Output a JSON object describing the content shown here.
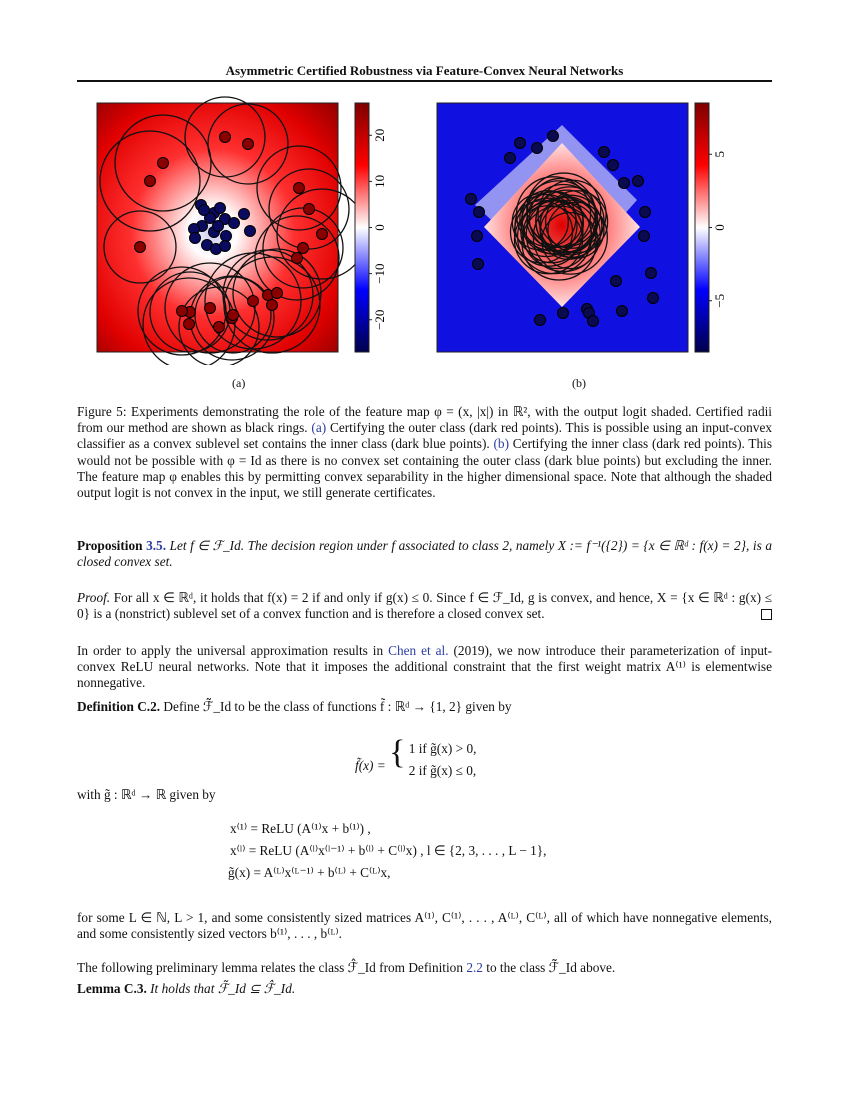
{
  "header": {
    "title": "Asymmetric Certified Robustness via Feature-Convex Neural Networks"
  },
  "figure": {
    "panels": [
      {
        "label": "(a)",
        "colorbar_ticks": [
          "20",
          "10",
          "0",
          "−10",
          "−20"
        ],
        "colorbar_range": [
          -27,
          27
        ],
        "colors": {
          "low": "#00004c",
          "mid": "#ffffff",
          "high": "#7f0000"
        }
      },
      {
        "label": "(b)",
        "colorbar_ticks": [
          "5",
          "0",
          "−5"
        ],
        "colorbar_range": [
          -8.5,
          8.5
        ],
        "colors": {
          "low": "#00004c",
          "mid": "#ffffff",
          "high": "#7f0000"
        }
      }
    ],
    "caption_prefix": "Figure 5: ",
    "caption_1": "Experiments demonstrating the role of the feature map φ = (x, |x|) in ℝ², with the output logit shaded. Certified radii from our method are shown as black rings. ",
    "caption_a": "(a)",
    "caption_2": " Certifying the outer class (dark red points). This is possible using an input-convex classifier as a convex sublevel set contains the inner class (dark blue points). ",
    "caption_b": "(b)",
    "caption_3": " Certifying the inner class (dark red points). This would not be possible with φ = Id as there is no convex set containing the outer class (dark blue points) but excluding the inner. The feature map φ enables this by permitting convex separability in the higher dimensional space. Note that although the shaded output logit is not convex in the input, we still generate certificates."
  },
  "proposition": {
    "label": "Proposition ",
    "num": "3.5.",
    "text": " Let f ∈ ℱ_Id. The decision region under f associated to class 2, namely X := f⁻¹({2}) = {x ∈ ℝᵈ : f(x) = 2}, is a closed convex set."
  },
  "proof": {
    "label": "Proof.",
    "text": " For all x ∈ ℝᵈ, it holds that f(x) = 2 if and only if g(x) ≤ 0. Since f ∈ ℱ_Id, g is convex, and hence, X = {x ∈ ℝᵈ : g(x) ≤ 0} is a (nonstrict) sublevel set of a convex function and is therefore a closed convex set."
  },
  "para1": {
    "before": "In order to apply the universal approximation results in ",
    "cite": "Chen et al.",
    "year": " (2019)",
    "after": ", we now introduce their parameterization of input-convex ReLU neural networks. Note that it imposes the additional constraint that the first weight matrix A⁽¹⁾ is elementwise nonnegative."
  },
  "definition": {
    "label": "Definition C.2.",
    "text": " Define ℱ̃_Id to be the class of functions f̃ : ℝᵈ → {1, 2} given by"
  },
  "eq1": {
    "lhs": "f̃(x) =",
    "case1": "1   if g̃(x) > 0,",
    "case2": "2   if g̃(x) ≤ 0,"
  },
  "with": "with g̃ : ℝᵈ → ℝ given by",
  "eq2": [
    "x⁽¹⁾ = ReLU (A⁽¹⁾x + b⁽¹⁾) ,",
    "x⁽ˡ⁾ = ReLU (A⁽ˡ⁾x⁽ˡ⁻¹⁾ + b⁽ˡ⁾ + C⁽ˡ⁾x) , l ∈ {2, 3, . . . , L − 1},",
    "g̃(x) = A⁽ᴸ⁾x⁽ᴸ⁻¹⁾ + b⁽ᴸ⁾ + C⁽ᴸ⁾x,"
  ],
  "para2": "for some L ∈ ℕ, L > 1, and some consistently sized matrices A⁽¹⁾, C⁽¹⁾, . . . , A⁽ᴸ⁾, C⁽ᴸ⁾, all of which have nonnegative elements, and some consistently sized vectors b⁽¹⁾, . . . , b⁽ᴸ⁾.",
  "para3": {
    "before": "The following preliminary lemma relates the class ℱ̂_Id from Definition ",
    "ref": "2.2",
    "after": " to the class ℱ̃_Id above."
  },
  "lemma": {
    "label": "Lemma C.3.",
    "text": " It holds that ℱ̃_Id ⊆ ℱ̂_Id."
  }
}
